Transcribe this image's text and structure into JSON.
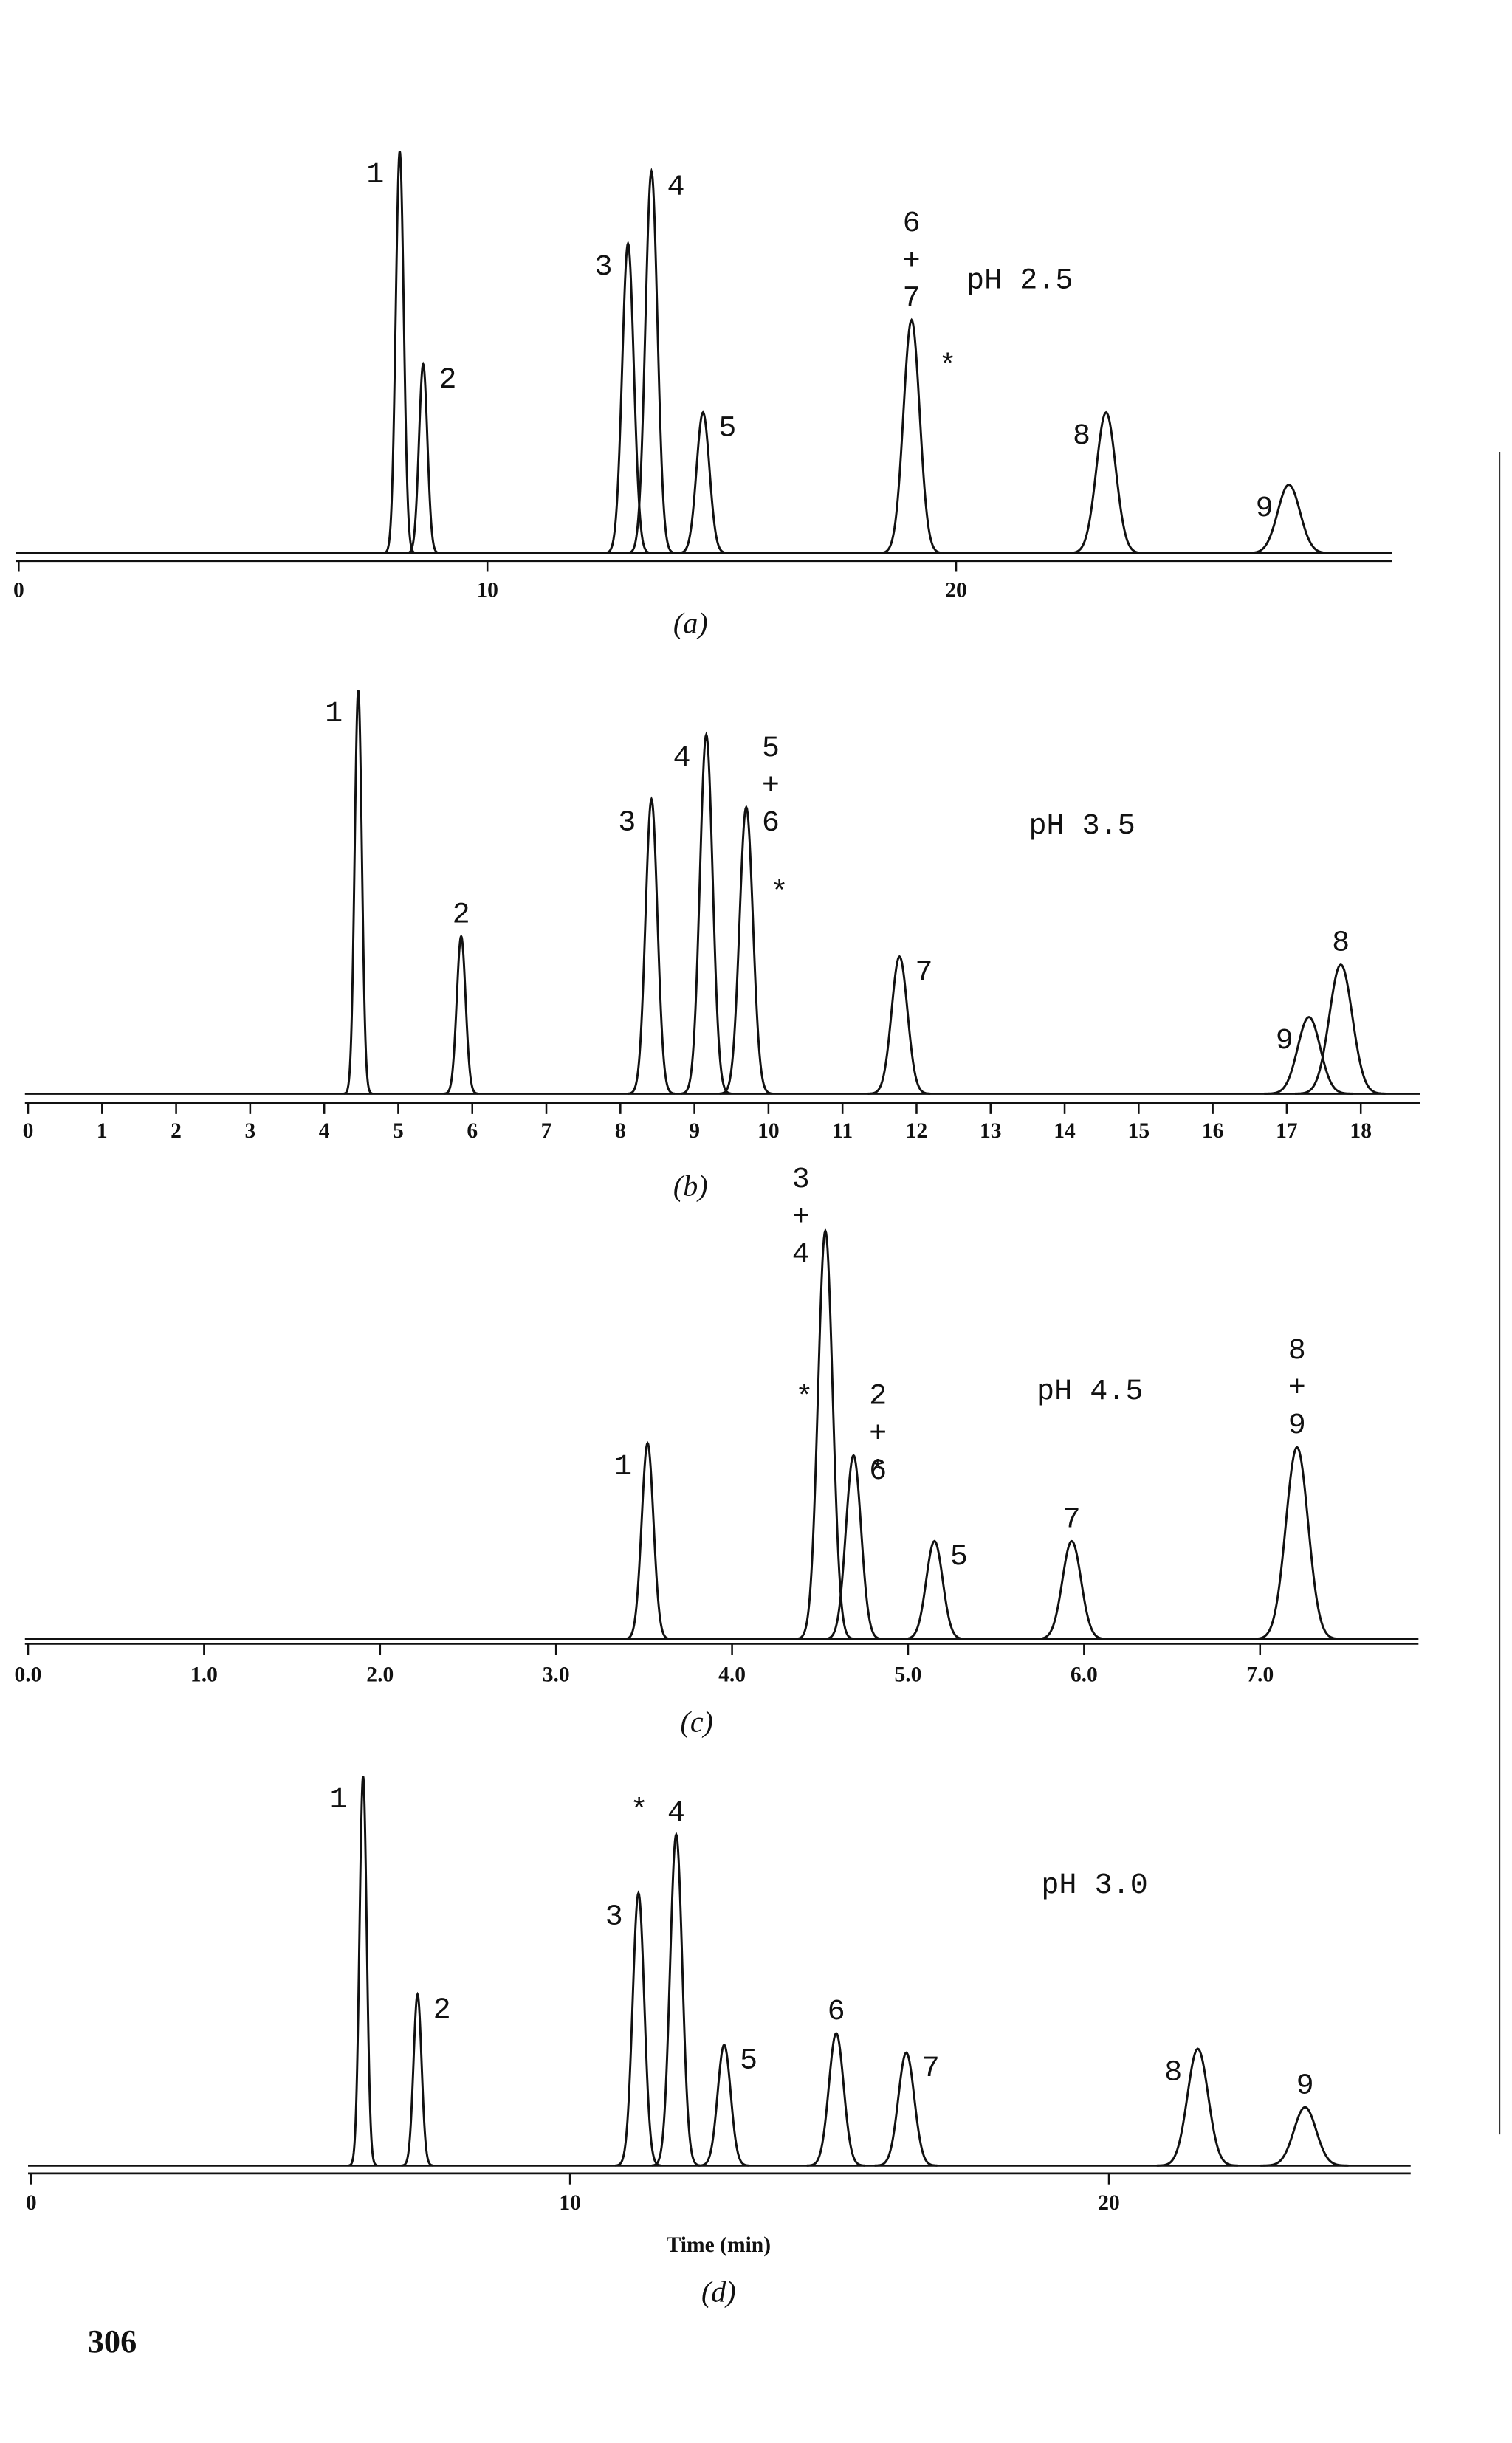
{
  "chart_data": [
    {
      "type": "chromatogram",
      "title": "pH 2.5",
      "caption": "(a)",
      "xlim": [
        0,
        29.3
      ],
      "xticks": [
        0,
        10,
        20
      ],
      "ylim": [
        0,
        100
      ],
      "x": [
        8.13,
        8.63,
        13.0,
        13.5,
        14.6,
        19.05,
        23.2,
        27.1
      ],
      "values": [
        100,
        47,
        77,
        95,
        35,
        58,
        35,
        17
      ],
      "peak_labels": [
        [
          "1"
        ],
        [
          "2"
        ],
        [
          "3"
        ],
        [
          "4"
        ],
        [
          "5"
        ],
        [
          "6",
          "+",
          "7"
        ],
        [
          "8"
        ],
        [
          "9"
        ]
      ],
      "annotations": [
        {
          "text": "*",
          "x": 19.8
        }
      ]
    },
    {
      "type": "chromatogram",
      "title": "pH 3.5",
      "caption": "(b)",
      "xlim": [
        0,
        18.8
      ],
      "xticks": [
        0,
        1,
        2,
        3,
        4,
        5,
        6,
        7,
        8,
        9,
        10,
        11,
        12,
        13,
        14,
        15,
        16,
        17,
        18
      ],
      "ylim": [
        0,
        100
      ],
      "x": [
        4.46,
        5.85,
        8.42,
        9.16,
        9.7,
        11.77,
        17.3,
        17.73
      ],
      "values": [
        100,
        39,
        73,
        89,
        71,
        34,
        19,
        32
      ],
      "peak_labels": [
        [
          "1"
        ],
        [
          "2"
        ],
        [
          "3"
        ],
        [
          "4"
        ],
        [
          "5",
          "+",
          "6"
        ],
        [
          "7"
        ],
        [
          "9"
        ],
        [
          "8"
        ]
      ],
      "annotations": [
        {
          "text": "*",
          "x": 10.15
        }
      ]
    },
    {
      "type": "chromatogram",
      "title": "pH 4.5",
      "caption": "(c)",
      "xlim": [
        0,
        7.9
      ],
      "xticks": [
        {
          "value": 0,
          "label": "0.0"
        },
        {
          "value": 1,
          "label": "1.0"
        },
        {
          "value": 2,
          "label": "2.0"
        },
        {
          "value": 3,
          "label": "3.0"
        },
        {
          "value": 4,
          "label": "4.0"
        },
        {
          "value": 5,
          "label": "5.0"
        },
        {
          "value": 6,
          "label": "6.0"
        },
        {
          "value": 7,
          "label": "7.0"
        }
      ],
      "ylim": [
        0,
        100
      ],
      "x": [
        3.52,
        4.53,
        4.69,
        5.15,
        5.93,
        7.21
      ],
      "values": [
        48,
        100,
        45,
        24,
        24,
        47
      ],
      "peak_labels": [
        [
          "1"
        ],
        [
          "3",
          "+",
          "4"
        ],
        [
          "2",
          "+",
          "6"
        ],
        [
          "5"
        ],
        [
          "7"
        ],
        [
          "8",
          "+",
          "9"
        ]
      ],
      "annotations": [
        {
          "text": "*",
          "x": 4.41
        },
        {
          "text": "*",
          "x": 4.83
        }
      ]
    },
    {
      "type": "chromatogram",
      "title": "pH 3.0",
      "caption": "(d)",
      "xlabel": "Time (min)",
      "xlim": [
        0,
        25.6
      ],
      "xticks": [
        0,
        10,
        20
      ],
      "ylim": [
        0,
        100
      ],
      "x": [
        6.16,
        7.17,
        11.27,
        11.97,
        12.86,
        14.94,
        16.24,
        21.65,
        23.64
      ],
      "values": [
        100,
        44,
        70,
        85,
        31,
        34,
        29,
        30,
        15
      ],
      "peak_labels": [
        [
          "1"
        ],
        [
          "2"
        ],
        [
          "3"
        ],
        [
          "4"
        ],
        [
          "5"
        ],
        [
          "6"
        ],
        [
          "7"
        ],
        [
          "8"
        ],
        [
          "9"
        ]
      ],
      "annotations": [
        {
          "text": "*",
          "x": 11.27
        }
      ]
    }
  ],
  "page_number": "306"
}
